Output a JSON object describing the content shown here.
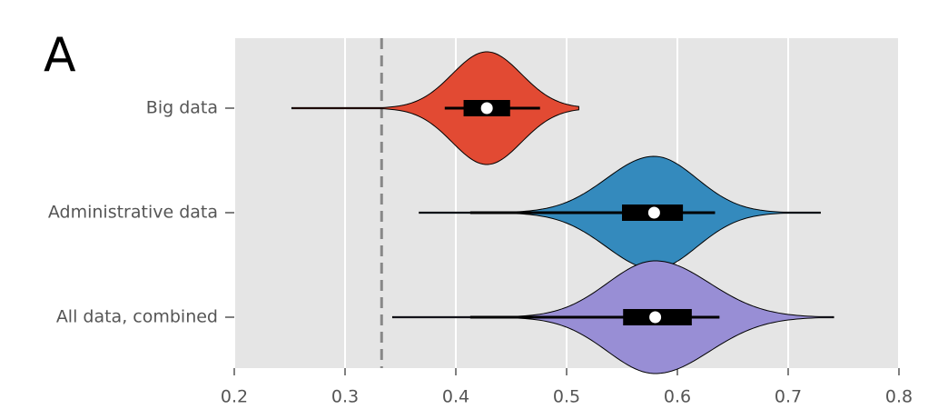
{
  "chart_data": {
    "type": "violin",
    "panel_label": "A",
    "categories": [
      "Big data",
      "Administrative data",
      "All data, combined"
    ],
    "series": [
      {
        "name": "Big data",
        "color": "#e24a33",
        "min": 0.252,
        "whisker_low": 0.39,
        "q1": 0.407,
        "median": 0.428,
        "q3": 0.449,
        "whisker_high": 0.476,
        "max": 0.511
      },
      {
        "name": "Administrative data",
        "color": "#348abd",
        "min": 0.367,
        "whisker_low": 0.413,
        "q1": 0.55,
        "median": 0.579,
        "q3": 0.605,
        "whisker_high": 0.634,
        "max": 0.729
      },
      {
        "name": "All data, combined",
        "color": "#988ed5",
        "min": 0.343,
        "whisker_low": 0.413,
        "q1": 0.551,
        "median": 0.58,
        "q3": 0.613,
        "whisker_high": 0.638,
        "max": 0.741
      }
    ],
    "reference_line": 0.333,
    "xlim": [
      0.2,
      0.8
    ],
    "xticks": [
      0.2,
      0.3,
      0.4,
      0.5,
      0.6,
      0.7,
      0.8
    ],
    "grid": true
  }
}
